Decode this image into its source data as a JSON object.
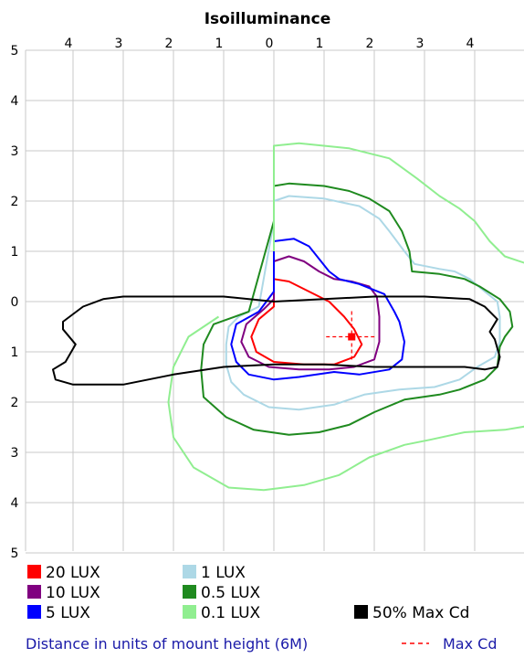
{
  "chart_data": {
    "type": "line",
    "title": "Isoilluminance",
    "x_top_ticks": [
      "4",
      "3",
      "2",
      "1",
      "0",
      "1",
      "2",
      "3",
      "4"
    ],
    "y_ticks": [
      "5",
      "4",
      "3",
      "2",
      "1",
      "0",
      "1",
      "2",
      "3",
      "4",
      "5"
    ],
    "xlim": [
      -5,
      5
    ],
    "ylim": [
      -5,
      5
    ],
    "grid": true,
    "footer": "Distance in units of mount height (6M)",
    "max_cd_label": "Max Cd",
    "max_cd_point": [
      1.55,
      -0.7
    ],
    "series": [
      {
        "name": "20 LUX",
        "color": "#ff0000",
        "points": [
          [
            0,
            0
          ],
          [
            0,
            0.45
          ],
          [
            0.3,
            0.4
          ],
          [
            0.7,
            0.2
          ],
          [
            1.1,
            0
          ],
          [
            1.4,
            -0.3
          ],
          [
            1.6,
            -0.55
          ],
          [
            1.75,
            -0.85
          ],
          [
            1.6,
            -1.1
          ],
          [
            1.2,
            -1.25
          ],
          [
            0.6,
            -1.25
          ],
          [
            0,
            -1.2
          ],
          [
            -0.35,
            -1.0
          ],
          [
            -0.45,
            -0.7
          ],
          [
            -0.3,
            -0.35
          ],
          [
            0,
            -0.1
          ]
        ]
      },
      {
        "name": "10 LUX",
        "color": "#800080",
        "points": [
          [
            0,
            0.05
          ],
          [
            0,
            0.8
          ],
          [
            0.3,
            0.9
          ],
          [
            0.6,
            0.8
          ],
          [
            0.9,
            0.6
          ],
          [
            1.2,
            0.45
          ],
          [
            1.55,
            0.4
          ],
          [
            1.9,
            0.3
          ],
          [
            2.05,
            0.1
          ],
          [
            2.1,
            -0.3
          ],
          [
            2.1,
            -0.8
          ],
          [
            2.0,
            -1.15
          ],
          [
            1.6,
            -1.3
          ],
          [
            1.1,
            -1.35
          ],
          [
            0.5,
            -1.35
          ],
          [
            -0.1,
            -1.3
          ],
          [
            -0.5,
            -1.1
          ],
          [
            -0.65,
            -0.8
          ],
          [
            -0.55,
            -0.45
          ],
          [
            -0.2,
            -0.15
          ]
        ]
      },
      {
        "name": "5 LUX",
        "color": "#0000ff",
        "points": [
          [
            0,
            0.2
          ],
          [
            0,
            1.2
          ],
          [
            0.4,
            1.25
          ],
          [
            0.7,
            1.1
          ],
          [
            1.1,
            0.6
          ],
          [
            1.3,
            0.45
          ],
          [
            1.7,
            0.35
          ],
          [
            2.2,
            0.15
          ],
          [
            2.4,
            -0.2
          ],
          [
            2.5,
            -0.4
          ],
          [
            2.6,
            -0.8
          ],
          [
            2.55,
            -1.15
          ],
          [
            2.3,
            -1.35
          ],
          [
            1.7,
            -1.45
          ],
          [
            1.2,
            -1.4
          ],
          [
            0.5,
            -1.5
          ],
          [
            0,
            -1.55
          ],
          [
            -0.5,
            -1.45
          ],
          [
            -0.75,
            -1.2
          ],
          [
            -0.85,
            -0.85
          ],
          [
            -0.75,
            -0.45
          ],
          [
            -0.3,
            -0.2
          ]
        ]
      },
      {
        "name": "1 LUX",
        "color": "#add8e6",
        "points": [
          [
            0,
            1.6
          ],
          [
            0,
            2.0
          ],
          [
            0.3,
            2.1
          ],
          [
            1.0,
            2.05
          ],
          [
            1.7,
            1.9
          ],
          [
            2.1,
            1.65
          ],
          [
            2.3,
            1.4
          ],
          [
            2.6,
            1.0
          ],
          [
            2.8,
            0.75
          ],
          [
            3.3,
            0.65
          ],
          [
            3.6,
            0.6
          ],
          [
            3.9,
            0.45
          ],
          [
            4.2,
            0.2
          ],
          [
            4.45,
            0
          ],
          [
            4.5,
            -0.3
          ],
          [
            4.5,
            -0.8
          ],
          [
            4.4,
            -1.1
          ],
          [
            4.05,
            -1.3
          ],
          [
            3.7,
            -1.55
          ],
          [
            3.2,
            -1.7
          ],
          [
            2.5,
            -1.75
          ],
          [
            1.8,
            -1.85
          ],
          [
            1.2,
            -2.05
          ],
          [
            0.5,
            -2.15
          ],
          [
            -0.1,
            -2.1
          ],
          [
            -0.6,
            -1.85
          ],
          [
            -0.85,
            -1.6
          ],
          [
            -0.95,
            -1.25
          ],
          [
            -0.95,
            -0.85
          ],
          [
            -0.9,
            -0.5
          ],
          [
            -0.7,
            -0.3
          ],
          [
            -0.3,
            -0.1
          ]
        ]
      },
      {
        "name": "0.5 LUX",
        "color": "#1f8a1f",
        "points": [
          [
            0,
            1.6
          ],
          [
            0,
            2.3
          ],
          [
            0.3,
            2.35
          ],
          [
            1.0,
            2.3
          ],
          [
            1.5,
            2.2
          ],
          [
            1.9,
            2.05
          ],
          [
            2.3,
            1.8
          ],
          [
            2.55,
            1.4
          ],
          [
            2.7,
            1.0
          ],
          [
            2.75,
            0.6
          ],
          [
            3.3,
            0.55
          ],
          [
            3.8,
            0.45
          ],
          [
            4.1,
            0.3
          ],
          [
            4.5,
            0.05
          ],
          [
            4.7,
            -0.2
          ],
          [
            4.75,
            -0.5
          ],
          [
            4.6,
            -0.7
          ],
          [
            4.5,
            -0.9
          ],
          [
            4.45,
            -1.3
          ],
          [
            4.2,
            -1.55
          ],
          [
            3.7,
            -1.75
          ],
          [
            3.3,
            -1.85
          ],
          [
            2.6,
            -1.95
          ],
          [
            2.0,
            -2.2
          ],
          [
            1.5,
            -2.45
          ],
          [
            0.9,
            -2.6
          ],
          [
            0.3,
            -2.65
          ],
          [
            -0.4,
            -2.55
          ],
          [
            -0.95,
            -2.3
          ],
          [
            -1.4,
            -1.9
          ],
          [
            -1.45,
            -1.35
          ],
          [
            -1.4,
            -0.85
          ],
          [
            -1.2,
            -0.45
          ],
          [
            -0.5,
            -0.2
          ]
        ]
      },
      {
        "name": "0.1 LUX",
        "color": "#90ee90",
        "points": [
          [
            0,
            1.0
          ],
          [
            0,
            3.1
          ],
          [
            0.5,
            3.15
          ],
          [
            1.5,
            3.05
          ],
          [
            2.3,
            2.85
          ],
          [
            2.85,
            2.45
          ],
          [
            3.3,
            2.1
          ],
          [
            3.7,
            1.85
          ],
          [
            4.0,
            1.6
          ],
          [
            4.3,
            1.2
          ],
          [
            4.6,
            0.9
          ],
          [
            5.2,
            0.7
          ],
          [
            5.6,
            0.6
          ],
          [
            5.7,
            0.4
          ]
        ]
      },
      {
        "name": "0.1 LUX",
        "color": "#90ee90",
        "points": [
          [
            5.7,
            -2.4
          ],
          [
            5.2,
            -2.45
          ],
          [
            4.6,
            -2.55
          ],
          [
            3.8,
            -2.6
          ],
          [
            3.1,
            -2.75
          ],
          [
            2.6,
            -2.85
          ],
          [
            1.9,
            -3.1
          ],
          [
            1.3,
            -3.45
          ],
          [
            0.6,
            -3.65
          ],
          [
            -0.2,
            -3.75
          ],
          [
            -0.9,
            -3.7
          ],
          [
            -1.6,
            -3.3
          ],
          [
            -2.0,
            -2.7
          ],
          [
            -2.1,
            -2.0
          ],
          [
            -2.0,
            -1.3
          ],
          [
            -1.7,
            -0.7
          ],
          [
            -1.1,
            -0.3
          ]
        ]
      },
      {
        "name": "50% Max Cd",
        "color": "#000000",
        "points": [
          [
            -4.2,
            -0.4
          ],
          [
            -3.8,
            -0.1
          ],
          [
            -3.4,
            0.05
          ],
          [
            -3.0,
            0.1
          ],
          [
            -2.0,
            0.1
          ],
          [
            -1.0,
            0.1
          ],
          [
            0,
            0.0
          ],
          [
            1.0,
            0.05
          ],
          [
            2.0,
            0.1
          ],
          [
            3.0,
            0.1
          ],
          [
            3.9,
            0.05
          ],
          [
            4.2,
            -0.1
          ],
          [
            4.45,
            -0.35
          ],
          [
            4.3,
            -0.6
          ],
          [
            4.4,
            -0.75
          ],
          [
            4.5,
            -1.1
          ],
          [
            4.45,
            -1.3
          ],
          [
            4.2,
            -1.35
          ],
          [
            3.8,
            -1.3
          ],
          [
            3.0,
            -1.3
          ],
          [
            2.0,
            -1.3
          ],
          [
            1.0,
            -1.25
          ],
          [
            0,
            -1.25
          ],
          [
            -1.0,
            -1.3
          ],
          [
            -2.0,
            -1.45
          ],
          [
            -3.0,
            -1.65
          ],
          [
            -4.0,
            -1.65
          ],
          [
            -4.35,
            -1.55
          ],
          [
            -4.4,
            -1.35
          ],
          [
            -4.15,
            -1.2
          ],
          [
            -3.95,
            -0.85
          ],
          [
            -4.2,
            -0.55
          ]
        ]
      }
    ],
    "legend": [
      {
        "label": "20 LUX",
        "color": "#ff0000"
      },
      {
        "label": "1 LUX",
        "color": "#add8e6"
      },
      {
        "label": "10 LUX",
        "color": "#800080"
      },
      {
        "label": "0.5 LUX",
        "color": "#1f8a1f"
      },
      {
        "label": "5 LUX",
        "color": "#0000ff"
      },
      {
        "label": "0.1 LUX",
        "color": "#90ee90"
      },
      {
        "label": "50% Max Cd",
        "color": "#000000"
      }
    ]
  }
}
